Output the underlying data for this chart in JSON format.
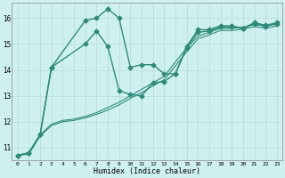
{
  "xlabel": "Humidex (Indice chaleur)",
  "bg_color": "#cff0f0",
  "grid_color": "#b8dada",
  "line_color": "#2e8b7a",
  "xlim": [
    -0.5,
    23.5
  ],
  "ylim": [
    10.5,
    16.6
  ],
  "yticks": [
    11,
    12,
    13,
    14,
    15,
    16
  ],
  "xticks": [
    0,
    1,
    2,
    3,
    4,
    5,
    6,
    7,
    8,
    9,
    10,
    11,
    12,
    13,
    14,
    15,
    16,
    17,
    18,
    19,
    20,
    21,
    22,
    23
  ],
  "series": [
    {
      "x": [
        0,
        1,
        2,
        3,
        6,
        7,
        8,
        9,
        10,
        11,
        12,
        13,
        14,
        15,
        16,
        17,
        18,
        19,
        20,
        21,
        22,
        23
      ],
      "y": [
        10.7,
        10.8,
        11.5,
        14.1,
        15.9,
        16.0,
        16.35,
        16.0,
        14.1,
        14.2,
        14.2,
        13.85,
        13.85,
        14.9,
        15.55,
        15.55,
        15.7,
        15.7,
        15.6,
        15.82,
        15.72,
        15.82
      ],
      "marker": "D",
      "marker_size": 2.5,
      "linewidth": 1.0,
      "zorder": 5
    },
    {
      "x": [
        0,
        1,
        2,
        3,
        6,
        7,
        8,
        9,
        10,
        11,
        12,
        13,
        14,
        15,
        16,
        17,
        18,
        19,
        20,
        21,
        22,
        23
      ],
      "y": [
        10.7,
        10.8,
        11.5,
        14.1,
        15.0,
        15.5,
        14.9,
        13.2,
        13.05,
        13.0,
        13.5,
        13.55,
        13.85,
        14.85,
        15.45,
        15.5,
        15.65,
        15.65,
        15.6,
        15.78,
        15.68,
        15.78
      ],
      "marker": "D",
      "marker_size": 2.5,
      "linewidth": 1.0,
      "zorder": 4
    },
    {
      "x": [
        0,
        1,
        2,
        3,
        4,
        5,
        6,
        7,
        8,
        9,
        10,
        11,
        12,
        13,
        14,
        15,
        16,
        17,
        18,
        19,
        20,
        21,
        22,
        23
      ],
      "y": [
        10.7,
        10.8,
        11.5,
        11.9,
        12.05,
        12.1,
        12.2,
        12.35,
        12.55,
        12.75,
        13.0,
        13.25,
        13.5,
        13.75,
        14.3,
        14.85,
        15.3,
        15.45,
        15.6,
        15.6,
        15.65,
        15.75,
        15.68,
        15.78
      ],
      "marker": null,
      "linewidth": 0.8,
      "zorder": 3
    },
    {
      "x": [
        0,
        1,
        2,
        3,
        4,
        5,
        6,
        7,
        8,
        9,
        10,
        11,
        12,
        13,
        14,
        15,
        16,
        17,
        18,
        19,
        20,
        21,
        22,
        23
      ],
      "y": [
        10.7,
        10.75,
        11.45,
        11.85,
        12.0,
        12.05,
        12.15,
        12.28,
        12.45,
        12.65,
        12.9,
        13.12,
        13.38,
        13.62,
        14.15,
        14.7,
        15.2,
        15.35,
        15.52,
        15.52,
        15.57,
        15.67,
        15.6,
        15.7
      ],
      "marker": null,
      "linewidth": 0.8,
      "zorder": 2
    }
  ]
}
